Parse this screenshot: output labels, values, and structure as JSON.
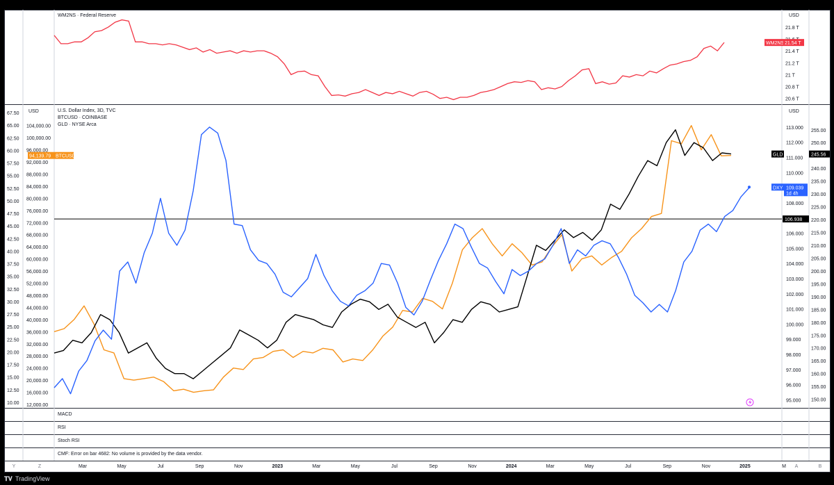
{
  "top_pane": {
    "title": "WM2NS · Federal Reserve",
    "unit": "USD",
    "ticks": [
      "21.8 T",
      "21.6 T",
      "21.4 T",
      "21.2 T",
      "21 T",
      "20.8 T",
      "20.6 T"
    ],
    "tag_name": "WM2NS",
    "tag_value": "21.54 T",
    "color": "#f23645"
  },
  "main_pane": {
    "legend": [
      "U.S. Dollar Index, 3D, TVC",
      "BTCUSD · COINBASE",
      "GLD · NYSE Arca"
    ],
    "unit_left": "USD",
    "unit_right": "USD",
    "left_ticks_gld": [
      "67.50",
      "65.00",
      "62.50",
      "60.00",
      "57.50",
      "55.00",
      "52.50",
      "50.00",
      "47.50",
      "45.00",
      "42.50",
      "40.00",
      "37.50",
      "35.00",
      "32.50",
      "30.00",
      "27.50",
      "25.00",
      "22.50",
      "20.00",
      "17.50",
      "15.00",
      "12.50",
      "10.00"
    ],
    "btc_ticks": [
      "104,000.00",
      "100,000.00",
      "96,000.00",
      "92,000.00",
      "88,000.00",
      "84,000.00",
      "80,000.00",
      "76,000.00",
      "72,000.00",
      "68,000.00",
      "64,000.00",
      "60,000.00",
      "56,000.00",
      "52,000.00",
      "48,000.00",
      "44,000.00",
      "40,000.00",
      "36,000.00",
      "32,000.00",
      "28,000.00",
      "24,000.00",
      "20,000.00",
      "16,000.00",
      "12,000.00"
    ],
    "dxy_ticks": [
      "113.000",
      "112.000",
      "111.000",
      "110.000",
      "108.000",
      "107.000",
      "106.000",
      "105.000",
      "104.000",
      "103.000",
      "102.000",
      "101.000",
      "100.000",
      "99.000",
      "98.000",
      "97.000",
      "96.000",
      "95.000"
    ],
    "gld_ticks": [
      "255.00",
      "250.00",
      "245.00",
      "240.00",
      "235.00",
      "230.00",
      "225.00",
      "220.00",
      "215.00",
      "210.00",
      "205.00",
      "200.00",
      "195.00",
      "190.00",
      "185.00",
      "180.00",
      "175.00",
      "170.00",
      "165.00",
      "160.00",
      "155.00",
      "150.00"
    ],
    "btc_tag_value": "94,139.79",
    "btc_tag_name": "BTCUSD",
    "gld_tag_name": "GLD",
    "gld_tag_value": "245.56",
    "dxy_tag_name": "DXY",
    "dxy_tag_value": "109.039",
    "dxy_tag_sub": "1d 4h",
    "hline_value": "106.938",
    "colors": {
      "dxy": "#2962ff",
      "btc": "#f7931a",
      "gld": "#000000",
      "hline": "#000000"
    }
  },
  "indicator_panes": [
    {
      "label": "MACD"
    },
    {
      "label": "RSI"
    },
    {
      "label": "Stoch RSI"
    },
    {
      "label": "CMF: Error on bar 4682: No volume is provided by the data vendor."
    }
  ],
  "time_axis": {
    "labels": [
      "Mar",
      "May",
      "Jul",
      "Sep",
      "Nov",
      "2023",
      "Mar",
      "May",
      "Jul",
      "Sep",
      "Nov",
      "2024",
      "Mar",
      "May",
      "Jul",
      "Sep",
      "Nov",
      "2025",
      "M"
    ],
    "bold": [
      "2023",
      "2024",
      "2025"
    ]
  },
  "scale_buttons": {
    "left": [
      "Y",
      "Z"
    ],
    "right": [
      "A",
      "B"
    ]
  },
  "footer": {
    "brand": "TradingView"
  },
  "chart_data": [
    {
      "type": "line",
      "title": "WM2NS · Federal Reserve",
      "unit": "USD",
      "series": [
        {
          "name": "WM2NS",
          "values": [
            21.66,
            21.52,
            21.52,
            21.55,
            21.55,
            21.62,
            21.72,
            21.74,
            21.8,
            21.88,
            21.92,
            21.9,
            21.55,
            21.55,
            21.52,
            21.52,
            21.5,
            21.52,
            21.5,
            21.46,
            21.42,
            21.45,
            21.38,
            21.42,
            21.36,
            21.38,
            21.4,
            21.36,
            21.4,
            21.38,
            21.4,
            21.4,
            21.36,
            21.3,
            21.18,
            21.0,
            21.05,
            21.06,
            21.0,
            20.98,
            20.8,
            20.65,
            20.66,
            20.64,
            20.68,
            20.7,
            20.75,
            20.7,
            20.65,
            20.7,
            20.68,
            20.72,
            20.68,
            20.64,
            20.7,
            20.72,
            20.67,
            20.6,
            20.62,
            20.58,
            20.62,
            20.62,
            20.65,
            20.7,
            20.72,
            20.75,
            20.8,
            20.85,
            20.88,
            20.87,
            20.9,
            20.88,
            20.75,
            20.78,
            20.76,
            20.8,
            20.9,
            20.98,
            21.08,
            21.1,
            20.85,
            20.88,
            20.84,
            20.86,
            20.98,
            20.96,
            21.0,
            20.98,
            21.06,
            21.03,
            21.1,
            21.16,
            21.18,
            21.22,
            21.24,
            21.3,
            21.44,
            21.48,
            21.4,
            21.54
          ]
        }
      ],
      "ylim": [
        20.55,
        21.95
      ],
      "ticks": [
        21.8,
        21.6,
        21.4,
        21.2,
        21.0,
        20.8,
        20.6
      ]
    },
    {
      "type": "line",
      "legend": [
        "U.S. Dollar Index, 3D, TVC",
        "BTCUSD · COINBASE",
        "GLD · NYSE Arca"
      ],
      "x_range": [
        "2022-01",
        "2025-01"
      ],
      "series": [
        {
          "name": "U.S. Dollar Index",
          "axis": "dxy",
          "values": [
            95.8,
            96.4,
            95.4,
            96.9,
            97.6,
            98.9,
            99.6,
            99.0,
            103.5,
            104.1,
            102.7,
            104.7,
            106.0,
            108.3,
            106.0,
            105.2,
            106.2,
            108.8,
            112.5,
            113.0,
            112.6,
            110.8,
            106.6,
            106.5,
            104.9,
            104.2,
            104.0,
            103.3,
            102.1,
            101.8,
            102.4,
            103.0,
            104.6,
            103.2,
            102.2,
            101.5,
            101.2,
            101.9,
            102.2,
            102.7,
            104.0,
            103.9,
            102.7,
            101.1,
            100.6,
            101.5,
            102.9,
            104.2,
            105.3,
            106.6,
            106.3,
            105.1,
            104.0,
            103.7,
            102.8,
            102.0,
            103.6,
            103.2,
            103.5,
            104.0,
            104.3,
            105.2,
            106.3,
            104.0,
            104.9,
            104.5,
            105.2,
            105.5,
            105.3,
            104.4,
            103.3,
            101.9,
            101.4,
            100.8,
            101.3,
            100.8,
            102.2,
            104.1,
            104.8,
            106.2,
            106.6,
            106.1,
            107.1,
            107.5,
            108.4,
            109.0
          ]
        },
        {
          "name": "BTCUSD",
          "axis": "btc",
          "values": [
            36000,
            37000,
            40000,
            44500,
            38500,
            30000,
            29000,
            20500,
            20000,
            20500,
            21000,
            19500,
            16500,
            17000,
            16000,
            16500,
            16800,
            21000,
            24000,
            23500,
            27000,
            27500,
            29500,
            30000,
            27500,
            29500,
            29000,
            30500,
            30000,
            26000,
            27000,
            26500,
            30000,
            34500,
            37500,
            43000,
            42500,
            47000,
            46000,
            43500,
            52000,
            63000,
            67000,
            70000,
            65000,
            61000,
            65000,
            62000,
            58000,
            59000,
            64000,
            68000,
            56000,
            60000,
            61000,
            58000,
            60500,
            62500,
            67000,
            70000,
            74000,
            75000,
            99000,
            98000,
            104000,
            96000,
            101000,
            94000,
            94139.79
          ]
        },
        {
          "name": "GLD",
          "axis": "gld",
          "values": [
            168,
            169,
            173,
            172,
            176,
            183,
            181,
            176,
            168,
            170,
            172,
            166,
            162,
            160,
            160,
            158,
            161,
            164,
            167,
            170,
            177,
            175,
            173,
            170,
            173,
            180,
            183,
            182,
            181,
            179,
            178,
            184,
            187,
            189,
            188,
            185,
            187,
            182,
            180,
            178,
            180,
            172,
            176,
            181,
            180,
            185,
            188,
            187,
            184,
            185,
            186,
            198,
            210,
            208,
            212,
            216,
            213,
            215,
            212,
            216,
            226,
            224,
            230,
            237,
            243,
            241,
            250,
            255,
            245,
            250,
            248,
            243,
            246,
            245.56
          ]
        }
      ],
      "hline": {
        "axis": "dxy",
        "value": 106.938
      },
      "ylim_dxy": [
        94.7,
        113.5
      ],
      "ylim_btc": [
        12000,
        106000
      ],
      "ylim_gld": [
        148,
        259
      ]
    }
  ]
}
